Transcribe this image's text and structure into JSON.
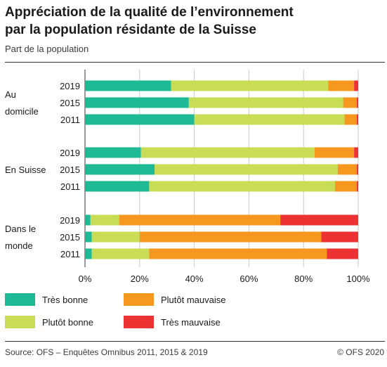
{
  "header": {
    "title_line1": "Appréciation de la qualité de l’environnement",
    "title_line2": "par la population résidante de la Suisse",
    "subtitle": "Part de la population"
  },
  "footer": {
    "source": "Source: OFS – Enquêtes Omnibus 2011, 2015 & 2019",
    "copyright": "© OFS 2020"
  },
  "chart_data": {
    "type": "bar",
    "orientation": "horizontal",
    "stacked": true,
    "title": "Appréciation de la qualité de l’environnement par la population résidante de la Suisse",
    "subtitle": "Part de la population",
    "xlim": [
      0,
      100
    ],
    "x_ticks": [
      "0%",
      "20%",
      "40%",
      "60%",
      "80%",
      "100%"
    ],
    "grid": "vertical",
    "legend_position": "bottom",
    "groups": [
      {
        "label_lines": [
          "Au",
          "domicile"
        ],
        "years": [
          "2019",
          "2015",
          "2011"
        ]
      },
      {
        "label_lines": [
          "En Suisse"
        ],
        "years": [
          "2019",
          "2015",
          "2011"
        ]
      },
      {
        "label_lines": [
          "Dans le",
          "monde"
        ],
        "years": [
          "2019",
          "2015",
          "2011"
        ]
      }
    ],
    "series": [
      {
        "name": "Très bonne",
        "color": "#1dba95",
        "values": [
          31.5,
          38.0,
          40.0,
          20.5,
          25.5,
          23.5,
          2.0,
          2.5,
          2.5
        ]
      },
      {
        "name": "Plutôt bonne",
        "color": "#c8dc56",
        "values": [
          57.5,
          56.5,
          55.0,
          63.5,
          67.0,
          68.0,
          10.5,
          17.5,
          21.0
        ]
      },
      {
        "name": "Plutôt mauvaise",
        "color": "#f5981d",
        "values": [
          9.5,
          5.0,
          4.5,
          14.5,
          7.0,
          8.0,
          59.0,
          66.5,
          65.0
        ]
      },
      {
        "name": "Très mauvaise",
        "color": "#ec3232",
        "values": [
          1.5,
          0.5,
          0.5,
          1.5,
          0.5,
          0.5,
          28.5,
          13.5,
          11.5
        ]
      }
    ]
  }
}
